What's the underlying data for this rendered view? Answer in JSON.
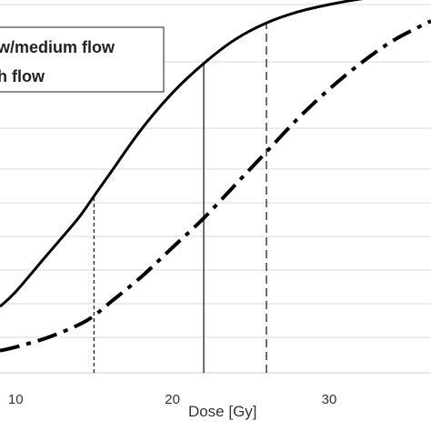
{
  "chart_data": {
    "type": "line",
    "xlabel": "Dose [Gy]",
    "ylabel": "",
    "x_tick_labels": [
      "10",
      "20",
      "30"
    ],
    "x_ticks": [
      10,
      20,
      30
    ],
    "xlim": [
      9,
      36.5
    ],
    "ylim": [
      0,
      1.0
    ],
    "grid": true,
    "legend_position": "top-left",
    "series": [
      {
        "name": "w/medium flow",
        "style": "solid",
        "color": "#000000",
        "x": [
          9,
          10,
          12,
          14,
          15,
          16,
          18,
          20,
          22,
          24,
          26,
          28,
          30,
          32,
          34,
          36,
          36.5
        ],
        "y": [
          0.18,
          0.22,
          0.32,
          0.42,
          0.48,
          0.54,
          0.66,
          0.76,
          0.84,
          0.905,
          0.95,
          0.98,
          1.0,
          1.015,
          1.025,
          1.03,
          1.03
        ]
      },
      {
        "name": "h flow",
        "style": "dash-dot",
        "color": "#000000",
        "x": [
          9,
          10,
          12,
          14,
          15,
          16,
          18,
          20,
          22,
          24,
          26,
          28,
          30,
          32,
          34,
          36,
          36.5
        ],
        "y": [
          0.06,
          0.07,
          0.095,
          0.13,
          0.155,
          0.19,
          0.26,
          0.34,
          0.42,
          0.51,
          0.6,
          0.69,
          0.77,
          0.84,
          0.9,
          0.945,
          0.955
        ]
      }
    ],
    "reference_lines": [
      {
        "x": 15,
        "style": "short-dash"
      },
      {
        "x": 22,
        "style": "solid"
      },
      {
        "x": 26,
        "style": "long-dash"
      }
    ]
  }
}
